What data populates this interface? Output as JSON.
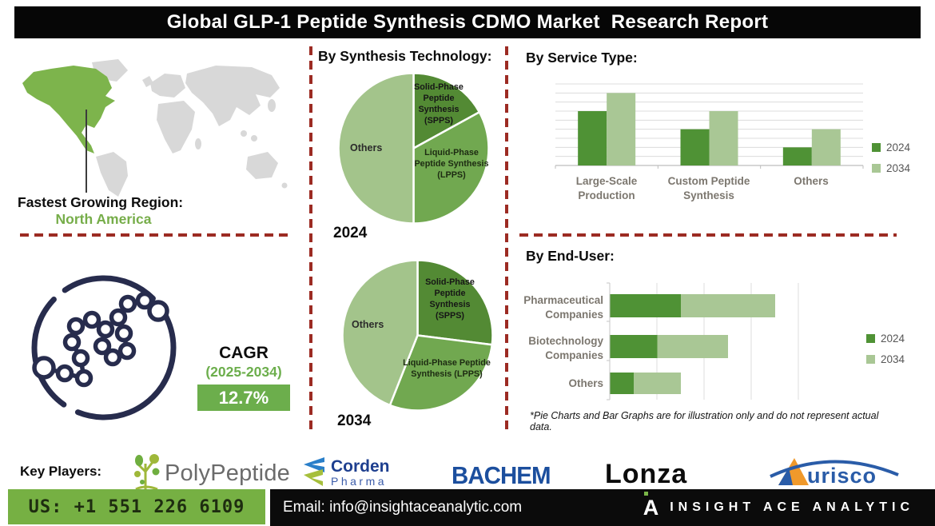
{
  "title": "Global GLP-1 Peptide Synthesis CDMO Market  Research Report",
  "colors": {
    "dashed_line": "#9c2b23",
    "region_green": "#76ad49",
    "cagr_box": "#6cae4c",
    "phone_bar": "#76b043",
    "bar_2024": "#4f9235",
    "bar_2034": "#a9c795",
    "pie_spps": "#538a34",
    "pie_lpps": "#71a850",
    "pie_others": "#a3c48b",
    "molecule_navy": "#272c4d",
    "map_gray": "#d8d8d8",
    "map_highlight": "#7db44c"
  },
  "map_section": {
    "label": "Fastest Growing Region:",
    "region": "North America"
  },
  "cagr": {
    "label": "CAGR",
    "period": "(2025-2034)",
    "value": "12.7%"
  },
  "sections": {
    "synthesis": {
      "heading": "By Synthesis Technology:"
    },
    "service": {
      "heading": "By Service Type:"
    },
    "enduser": {
      "heading": "By End-User:",
      "footnote": "*Pie Charts and Bar Graphs are for illustration only and do not represent actual data."
    }
  },
  "chart_data": [
    {
      "type": "pie",
      "title": "By Synthesis Technology: 2024",
      "year": "2024",
      "unit": "percent (illustrative)",
      "slices": [
        {
          "label": "Solid-Phase Peptide Synthesis (SPPS)",
          "value": 17
        },
        {
          "label": "Liquid-Phase Peptide Synthesis (LPPS)",
          "value": 33
        },
        {
          "label": "Others",
          "value": 50
        }
      ]
    },
    {
      "type": "pie",
      "title": "By Synthesis Technology: 2034",
      "year": "2034",
      "unit": "percent (illustrative)",
      "slices": [
        {
          "label": "Solid-Phase Peptide Synthesis (SPPS)",
          "value": 27
        },
        {
          "label": "Liquid-Phase Peptide Synthesis (LPPS)",
          "value": 29
        },
        {
          "label": "Others",
          "value": 44
        }
      ]
    },
    {
      "type": "bar",
      "title": "By Service Type:",
      "categories": [
        "Large-Scale Production",
        "Custom Peptide Synthesis",
        "Others"
      ],
      "series": [
        {
          "name": "2024",
          "values": [
            6,
            4,
            2
          ]
        },
        {
          "name": "2034",
          "values": [
            8,
            6,
            4
          ]
        }
      ],
      "ylim": [
        0,
        9
      ],
      "grid": true,
      "legend_position": "right",
      "note": "illustrative units"
    },
    {
      "type": "bar-horizontal-stacked",
      "title": "By End-User:",
      "categories": [
        "Pharmaceutical Companies",
        "Biotechnology Companies",
        "Others"
      ],
      "series": [
        {
          "name": "2024",
          "values": [
            1.5,
            1.0,
            0.5
          ]
        },
        {
          "name": "2034",
          "values": [
            2.0,
            1.5,
            1.0
          ]
        }
      ],
      "xlim": [
        0,
        4
      ],
      "grid": true,
      "legend_position": "right",
      "note": "illustrative units"
    }
  ],
  "key_players": {
    "label": "Key Players:",
    "companies": [
      "PolyPeptide",
      "Corden Pharma",
      "BACHEM",
      "Lonza",
      "Aurisco"
    ],
    "logos": {
      "polypeptide": "PolyPeptide",
      "corden_top": "Corden",
      "corden_bottom": "Pharma",
      "bachem": "BACHEM",
      "lonza": "Lonza",
      "aurisco_text": "urisco"
    }
  },
  "contact": {
    "phone": "US: +1 551 226 6109",
    "email": "Email: info@insightaceanalytic.com",
    "brand_mark": "A",
    "brand": "INSIGHT ACE ANALYTIC"
  }
}
